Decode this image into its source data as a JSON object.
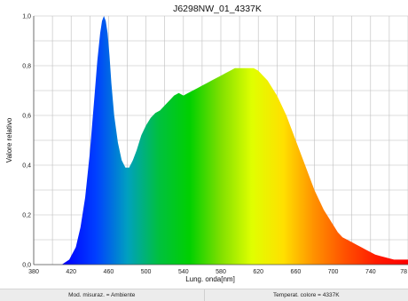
{
  "chart_data": {
    "type": "area",
    "title": "J6298NW_01_4337K",
    "xlabel": "Lung. onda[nm]",
    "ylabel": "Valore relativo",
    "xlim": [
      380,
      780
    ],
    "ylim": [
      0,
      1.0
    ],
    "x_ticks": [
      "380",
      "420",
      "460",
      "500",
      "540",
      "580",
      "620",
      "660",
      "700",
      "740",
      "78"
    ],
    "y_ticks": [
      "0,0",
      "0,2",
      "0,4",
      "0,6",
      "0,8",
      "1,0"
    ],
    "grid": true,
    "fill": "visible-spectrum gradient",
    "series": [
      {
        "x": [
          410,
          418,
          425,
          430,
          435,
          440,
          445,
          448,
          451,
          453,
          455,
          457,
          459,
          461,
          463,
          466,
          470,
          474,
          478,
          482,
          486,
          490,
          495,
          500,
          505,
          510,
          515,
          520,
          525,
          530,
          535,
          540,
          545,
          550,
          555,
          560,
          565,
          570,
          575,
          580,
          585,
          590,
          595,
          600,
          605,
          610,
          615,
          620,
          625,
          630,
          635,
          640,
          645,
          650,
          655,
          660,
          665,
          670,
          675,
          680,
          685,
          690,
          695,
          700,
          705,
          710,
          715,
          720,
          725,
          730,
          735,
          740,
          745,
          750,
          755,
          760,
          765,
          770,
          775,
          780
        ],
        "y": [
          0.0,
          0.02,
          0.07,
          0.15,
          0.27,
          0.45,
          0.68,
          0.82,
          0.93,
          0.98,
          1.0,
          0.98,
          0.93,
          0.84,
          0.73,
          0.6,
          0.49,
          0.42,
          0.39,
          0.39,
          0.42,
          0.46,
          0.52,
          0.56,
          0.59,
          0.61,
          0.62,
          0.64,
          0.66,
          0.68,
          0.69,
          0.68,
          0.69,
          0.7,
          0.71,
          0.72,
          0.73,
          0.74,
          0.75,
          0.76,
          0.77,
          0.78,
          0.79,
          0.79,
          0.79,
          0.79,
          0.79,
          0.78,
          0.76,
          0.74,
          0.71,
          0.68,
          0.64,
          0.6,
          0.55,
          0.5,
          0.45,
          0.4,
          0.35,
          0.3,
          0.26,
          0.22,
          0.19,
          0.16,
          0.13,
          0.11,
          0.1,
          0.09,
          0.08,
          0.07,
          0.06,
          0.05,
          0.04,
          0.035,
          0.03,
          0.025,
          0.02,
          0.02,
          0.02,
          0.02
        ]
      }
    ]
  },
  "colors": {
    "spectrum_stops": [
      "#1a00ff",
      "#0000ff",
      "#0040ff",
      "#00a0c0",
      "#00c040",
      "#00d000",
      "#80e000",
      "#e0ff00",
      "#ffe000",
      "#ff9000",
      "#ff5000",
      "#ff1a00",
      "#ff0000"
    ]
  },
  "status": {
    "left": "Mod. misuraz. = Ambiente",
    "right": "Temperat. colore = 4337K"
  }
}
